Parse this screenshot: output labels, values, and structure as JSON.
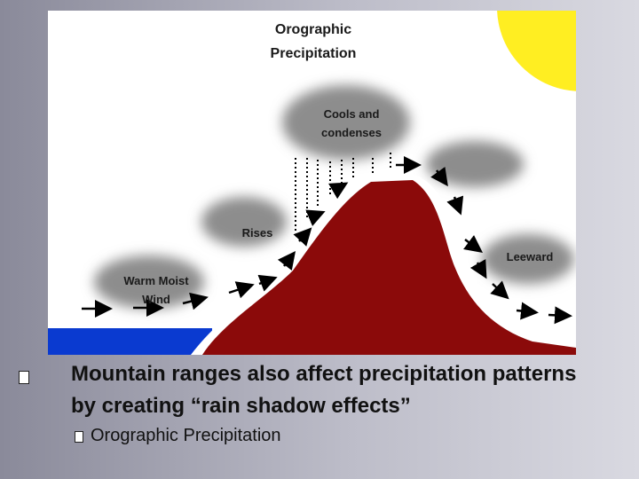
{
  "diagram": {
    "title": "Orographic Precipitation",
    "labels": {
      "cloud_top": "Cools and condenses",
      "rises": "Rises",
      "leeward": "Leeward",
      "wind": "Warm Moist Wind"
    }
  },
  "bullets": [
    {
      "text": "Mountain ranges also affect precipitation patterns by creating “rain shadow effects”",
      "subbullets": [
        "Orographic Precipitation"
      ]
    }
  ]
}
